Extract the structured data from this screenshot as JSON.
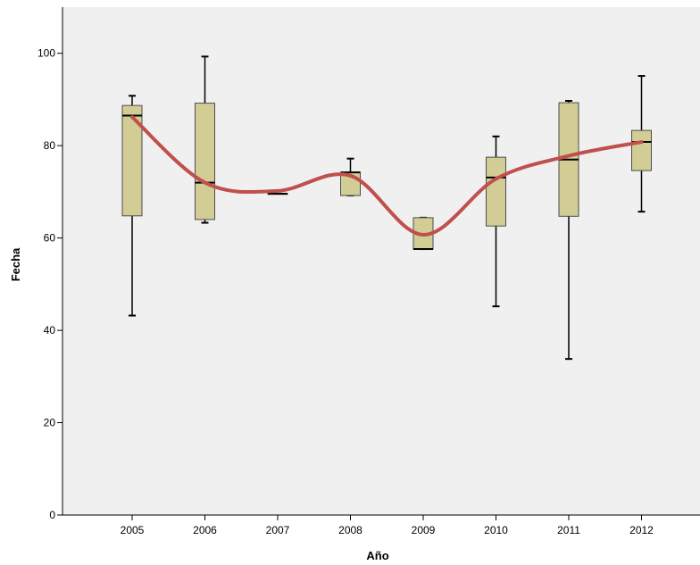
{
  "chart_data": {
    "type": "box",
    "xlabel": "Año",
    "ylabel": "Fecha",
    "ylim": [
      0,
      110
    ],
    "yticks": [
      0,
      20,
      40,
      60,
      80,
      100
    ],
    "categories": [
      "2005",
      "2006",
      "2007",
      "2008",
      "2009",
      "2010",
      "2011",
      "2012"
    ],
    "boxes": [
      {
        "category": "2005",
        "min": 43.2,
        "q1": 64.8,
        "median": 86.5,
        "q3": 88.7,
        "max": 90.8
      },
      {
        "category": "2006",
        "min": 63.3,
        "q1": 64.0,
        "median": 72.0,
        "q3": 89.2,
        "max": 99.3
      },
      {
        "category": "2007",
        "min": 69.6,
        "q1": 69.6,
        "median": 69.6,
        "q3": 69.6,
        "max": 69.6
      },
      {
        "category": "2008",
        "min": 69.2,
        "q1": 69.2,
        "median": 74.2,
        "q3": 74.2,
        "max": 77.2
      },
      {
        "category": "2009",
        "min": 57.6,
        "q1": 57.6,
        "median": 57.6,
        "q3": 64.4,
        "max": 64.4
      },
      {
        "category": "2010",
        "min": 45.2,
        "q1": 62.6,
        "median": 73.1,
        "q3": 77.5,
        "max": 82.0
      },
      {
        "category": "2011",
        "min": 33.8,
        "q1": 64.7,
        "median": 77.0,
        "q3": 89.3,
        "max": 89.7
      },
      {
        "category": "2012",
        "min": 65.7,
        "q1": 74.6,
        "median": 80.8,
        "q3": 83.3,
        "max": 95.1
      }
    ],
    "trend_line": {
      "values": [
        86.2,
        72.0,
        70.2,
        73.5,
        60.7,
        72.8,
        77.8,
        80.8
      ]
    },
    "colors": {
      "plot_background": "#f0f0f0",
      "box_fill": "#d2cc95",
      "box_stroke": "#4d4d4d",
      "trend_line": "#c0504d",
      "axis": "#000000"
    },
    "grid": false
  }
}
